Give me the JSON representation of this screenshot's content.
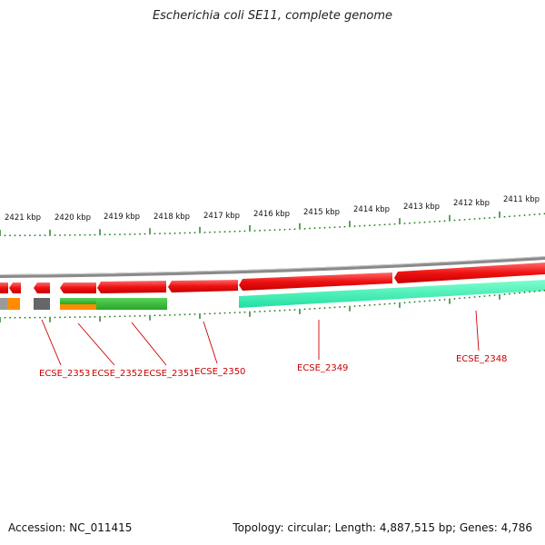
{
  "title": "Escherichia coli SE11, complete genome",
  "footer": {
    "accession": "Accession: NC_011415",
    "summary": "Topology: circular; Length: 4,887,515 bp; Genes: 4,786"
  },
  "colors": {
    "backbone": "#8a8a8a",
    "tick": "#1a7a1a",
    "gene_label": "#cc0000",
    "cds_forward": "#ee1111",
    "feature_green": "#33bb33",
    "feature_cyan": "#22eeaa",
    "feature_orange": "#ff8c00",
    "feature_gray": "#666666"
  },
  "kbp_labels": [
    "2421 kbp",
    "2420 kbp",
    "2419 kbp",
    "2418 kbp",
    "2417 kbp",
    "2416 kbp",
    "2415 kbp",
    "2414 kbp",
    "2413 kbp",
    "2412 kbp",
    "2411 kbp"
  ],
  "gene_labels": [
    "ECSE_2353",
    "ECSE_2352",
    "ECSE_2351",
    "ECSE_2350",
    "ECSE_2349",
    "ECSE_2348"
  ]
}
